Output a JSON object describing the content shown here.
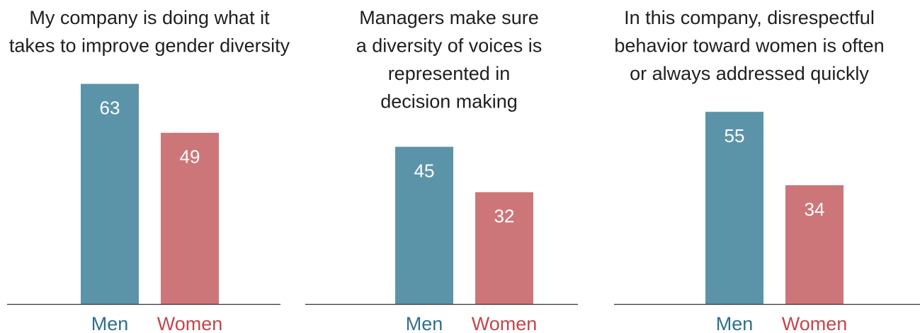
{
  "chart_data": [
    {
      "type": "bar",
      "title": [
        "My company is doing what it",
        "takes to improve gender diversity"
      ],
      "categories": [
        "Men",
        "Women"
      ],
      "values": [
        63,
        49
      ],
      "colors": [
        "#5b94a9",
        "#cd7679"
      ],
      "label_colors": [
        "#2f6f8c",
        "#c2474c"
      ],
      "ylim": [
        0,
        87
      ]
    },
    {
      "type": "bar",
      "title": [
        "Managers make sure",
        "a diversity of voices is",
        "represented in",
        "decision making"
      ],
      "categories": [
        "Men",
        "Women"
      ],
      "values": [
        45,
        32
      ],
      "colors": [
        "#5b94a9",
        "#cd7679"
      ],
      "label_colors": [
        "#2f6f8c",
        "#c2474c"
      ],
      "ylim": [
        0,
        87
      ]
    },
    {
      "type": "bar",
      "title": [
        "In this company, disrespectful",
        "behavior toward women is often",
        "or always addressed quickly"
      ],
      "categories": [
        "Men",
        "Women"
      ],
      "values": [
        55,
        34
      ],
      "colors": [
        "#5b94a9",
        "#cd7679"
      ],
      "label_colors": [
        "#2f6f8c",
        "#c2474c"
      ],
      "ylim": [
        0,
        87
      ]
    }
  ]
}
